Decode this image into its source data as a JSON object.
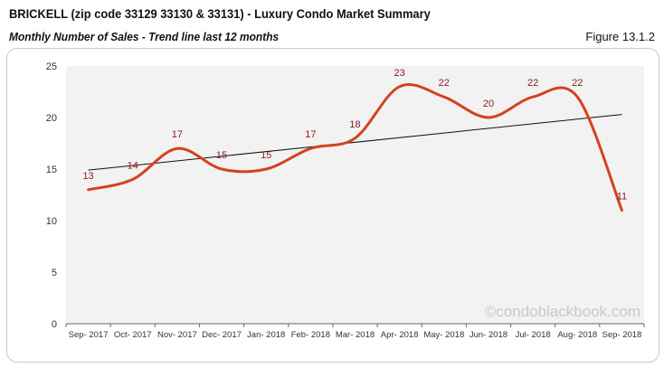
{
  "header": {
    "title": "BRICKELL (zip code 33129 33130 & 33131) - Luxury Condo Market Summary",
    "subtitle": "Monthly Number of Sales - Trend line last 12 months",
    "figure": "Figure 13.1.2"
  },
  "watermark": "©condoblackbook.com",
  "chart_data": {
    "type": "line",
    "categories": [
      "Sep- 2017",
      "Oct- 2017",
      "Nov- 2017",
      "Dec- 2017",
      "Jan- 2018",
      "Feb- 2018",
      "Mar- 2018",
      "Apr- 2018",
      "May- 2018",
      "Jun- 2018",
      "Jul- 2018",
      "Aug- 2018",
      "Sep- 2018"
    ],
    "series": [
      {
        "values": [
          13,
          14,
          17,
          15,
          15,
          17,
          18,
          23,
          22,
          20,
          22,
          22,
          11
        ],
        "color": "#d4421e",
        "smooth": true
      }
    ],
    "trendline": {
      "type": "linear",
      "start": 14.9,
      "end": 20.3,
      "color": "#111111"
    },
    "ylim": [
      0,
      25
    ],
    "yticks": [
      0,
      5,
      10,
      15,
      20,
      25
    ],
    "data_labels": true,
    "grid": false,
    "plot_background": "#f2f2f2"
  }
}
